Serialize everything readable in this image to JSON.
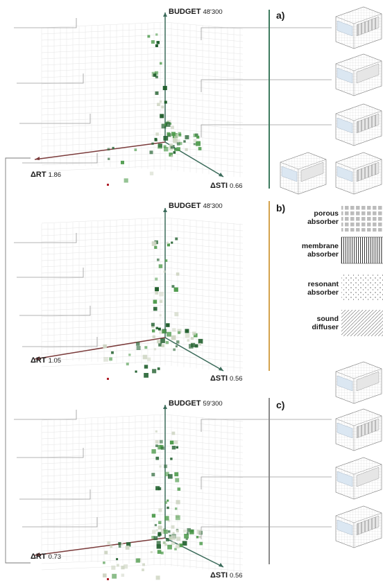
{
  "panels": [
    {
      "letter": "a)",
      "axes": {
        "budget_label": "BUDGET",
        "budget_value": "48'300",
        "rt_label": "ΔRT",
        "rt_value": "1.86",
        "sti_label": "ΔSTI",
        "sti_value": "0.66"
      },
      "bar_color": "#3d7a5e"
    },
    {
      "letter": "b)",
      "axes": {
        "budget_label": "BUDGET",
        "budget_value": "48'300",
        "rt_label": "ΔRT",
        "rt_value": "1.05",
        "sti_label": "ΔSTI",
        "sti_value": "0.56"
      },
      "bar_color": "#d4a24c"
    },
    {
      "letter": "c)",
      "axes": {
        "budget_label": "BUDGET",
        "budget_value": "59'300",
        "rt_label": "ΔRT",
        "rt_value": "0.73",
        "sti_label": "ΔSTI",
        "sti_value": "0.56"
      },
      "bar_color": "#8a8a8a"
    }
  ],
  "legend": [
    {
      "line1": "porous",
      "line2": "absorber",
      "pattern": "grid-squares"
    },
    {
      "line1": "membrane",
      "line2": "absorber",
      "pattern": "vertical-lines"
    },
    {
      "line1": "resonant",
      "line2": "absorber",
      "pattern": "dots"
    },
    {
      "line1": "sound",
      "line2": "diffuser",
      "pattern": "diagonal-hatch"
    }
  ],
  "colors": {
    "point_dark": "#1f5e2c",
    "point_mid": "#4c9a4a",
    "point_light": "#cfd6c4",
    "axis_budget": "#3b6b5a",
    "axis_rt": "#7a3a3a",
    "leader": "#9a9a9a"
  }
}
